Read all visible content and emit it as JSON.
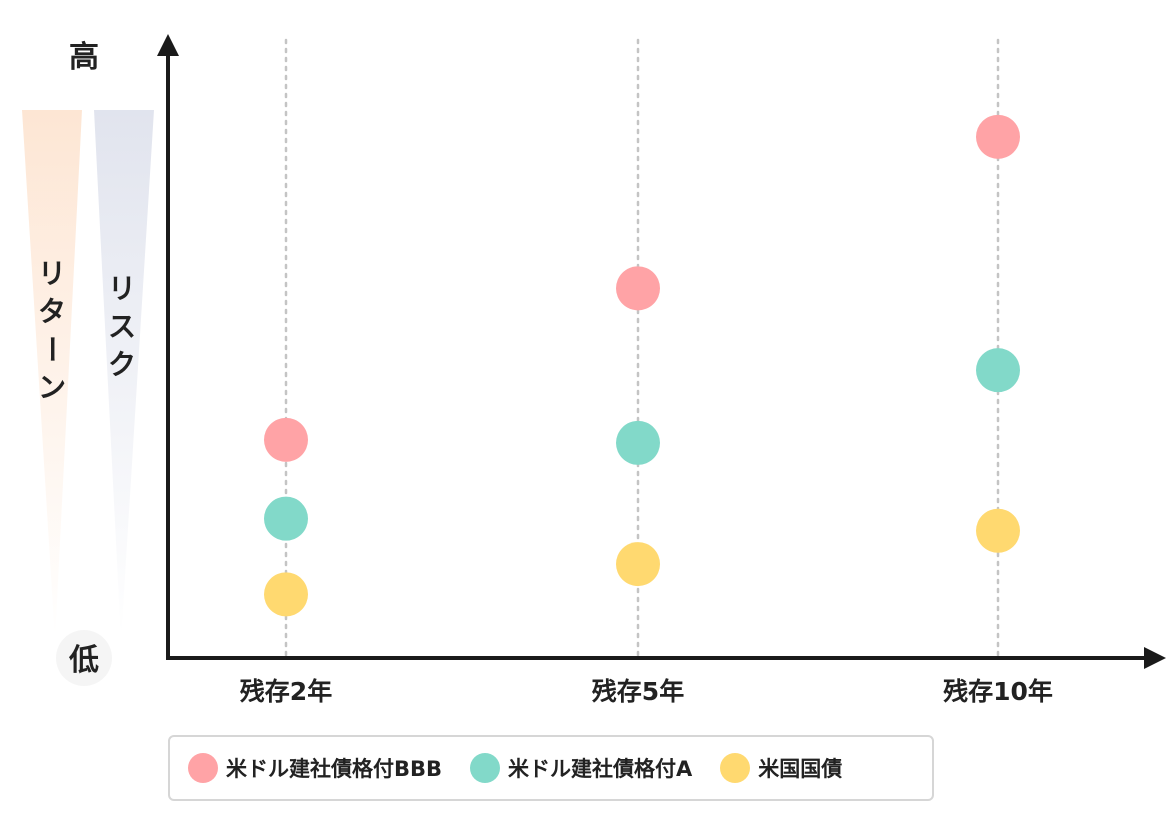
{
  "chart_data": {
    "type": "scatter",
    "categories": [
      "残存2年",
      "残存5年",
      "残存10年"
    ],
    "y_axis": {
      "high_label": "高",
      "low_label": "低",
      "indicators": [
        {
          "label": "リターン",
          "color": "#fde6d4"
        },
        {
          "label": "リスク",
          "color": "#e1e4ee"
        }
      ]
    },
    "ylim": [
      0,
      10
    ],
    "series": [
      {
        "name": "米ドル建社債格付BBB",
        "color": "#ffa3a6",
        "values": [
          3.6,
          6.1,
          8.6
        ]
      },
      {
        "name": "米ドル建社債格付A",
        "color": "#82d9c9",
        "values": [
          2.3,
          3.55,
          4.75
        ]
      },
      {
        "name": "米国国債",
        "color": "#ffd970",
        "values": [
          1.05,
          1.55,
          2.1
        ]
      }
    ],
    "grid": "vertical-dotted",
    "legend_position": "bottom"
  }
}
